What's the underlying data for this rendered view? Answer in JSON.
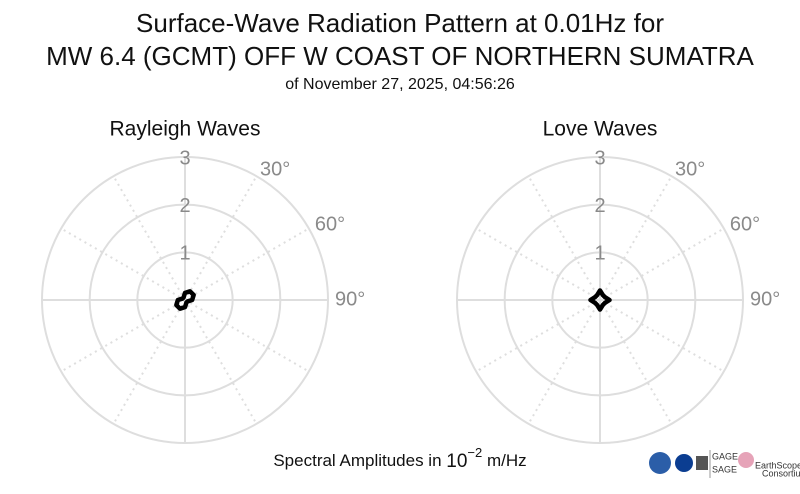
{
  "header": {
    "title_lines": [
      "Surface-Wave Radiation Pattern at 0.01Hz for",
      "MW 6.4 (GCMT) OFF W COAST OF NORTHERN SUMATRA"
    ],
    "subtitle": "of November 27, 2025, 04:56:26"
  },
  "chart_data": [
    {
      "type": "polar",
      "title": "Rayleigh Waves",
      "direction": "clockwise",
      "zero": "north",
      "rlim": [
        0,
        3
      ],
      "rticks": [
        1,
        2,
        3
      ],
      "thetaticks": [
        {
          "value": 30,
          "label": "30°"
        },
        {
          "value": 60,
          "label": "60°"
        },
        {
          "value": 90,
          "label": "90°"
        }
      ],
      "x": [
        0,
        30,
        60,
        90,
        120,
        150,
        180,
        210,
        240,
        270,
        300,
        330
      ],
      "series": [
        {
          "color": "#000000",
          "values": [
            0.15,
            0.21,
            0.21,
            0.15,
            0.06,
            0.06,
            0.15,
            0.21,
            0.21,
            0.15,
            0.06,
            0.06
          ]
        }
      ]
    },
    {
      "type": "polar",
      "title": "Love Waves",
      "direction": "clockwise",
      "zero": "north",
      "rlim": [
        0,
        3
      ],
      "rticks": [
        1,
        2,
        3
      ],
      "thetaticks": [
        {
          "value": 30,
          "label": "30°"
        },
        {
          "value": 60,
          "label": "60°"
        },
        {
          "value": 90,
          "label": "90°"
        }
      ],
      "x": [
        0,
        30,
        60,
        90,
        120,
        150,
        180,
        210,
        240,
        270,
        300,
        330
      ],
      "series": [
        {
          "color": "#000000",
          "values": [
            0.2,
            0.12,
            0.12,
            0.2,
            0.12,
            0.12,
            0.2,
            0.12,
            0.12,
            0.2,
            0.12,
            0.12
          ]
        }
      ]
    }
  ],
  "footer": {
    "text": "Spectral Amplitudes in",
    "base": "10",
    "exponent": "−2",
    "unit": "m/Hz"
  },
  "logos": {
    "gage": "GAGE",
    "sage": "SAGE",
    "earthscope": "EarthScope",
    "consortium": "Consortium"
  }
}
